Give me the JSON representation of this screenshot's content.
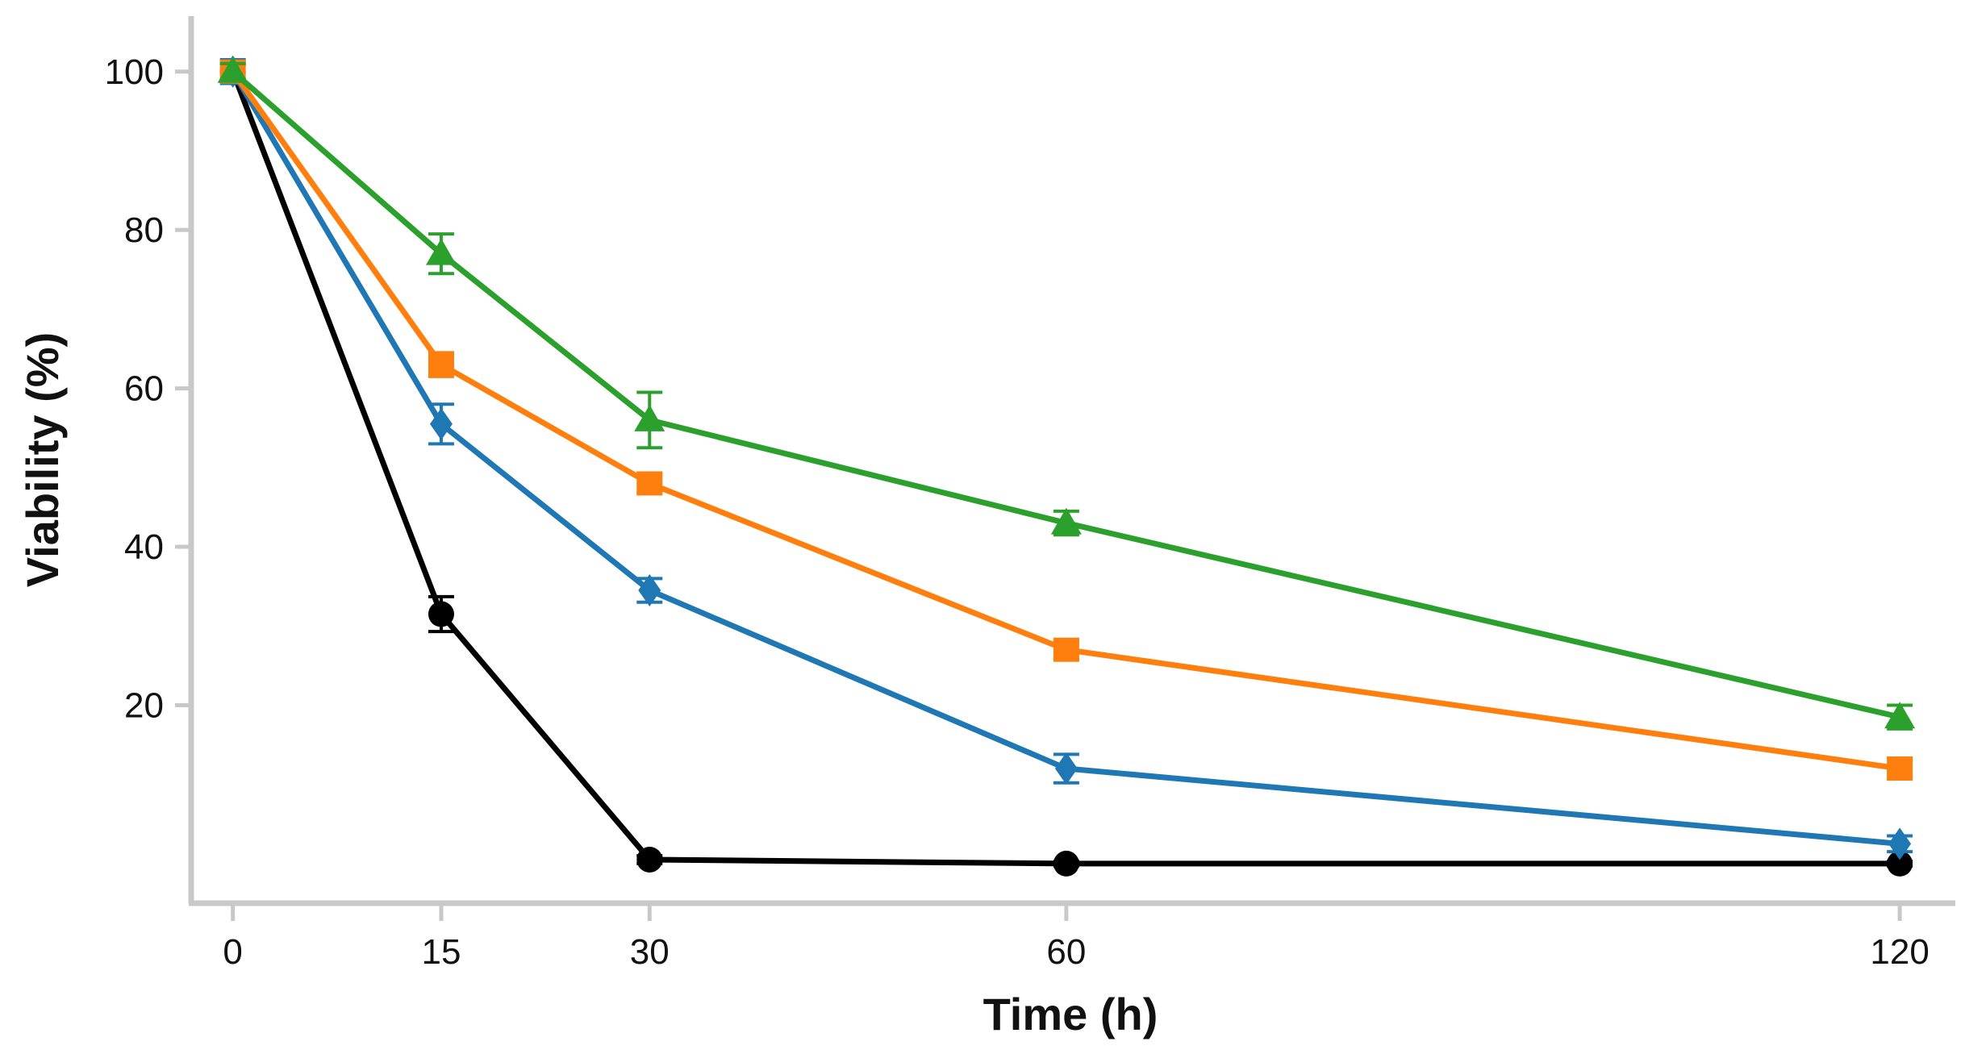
{
  "chart_data": {
    "type": "line",
    "title": "",
    "xlabel": "Time (h)",
    "ylabel": "Viability (%)",
    "x": [
      0,
      15,
      30,
      60,
      120
    ],
    "x_tick_labels": [
      "0",
      "15",
      "30",
      "60",
      "120"
    ],
    "y_ticks": [
      20,
      40,
      60,
      80,
      100
    ],
    "y_tick_labels": [
      "20",
      "40",
      "60",
      "80",
      "100"
    ],
    "xlim": [
      -3,
      124
    ],
    "ylim": [
      -5,
      107
    ],
    "grid": false,
    "legend": "none",
    "series": [
      {
        "name": "black",
        "color": "#000000",
        "marker": "circle",
        "values": [
          100,
          31.5,
          0.5,
          0,
          0
        ],
        "errors": [
          1.0,
          2.2,
          0.5,
          0.3,
          0.3
        ]
      },
      {
        "name": "blue",
        "color": "#1f77b4",
        "marker": "diamond",
        "values": [
          100,
          55.5,
          34.5,
          12,
          2.5
        ],
        "errors": [
          1.5,
          2.5,
          1.5,
          1.8,
          1.0
        ]
      },
      {
        "name": "orange",
        "color": "#ff7f0e",
        "marker": "square",
        "values": [
          100,
          63,
          48,
          27,
          12
        ],
        "errors": [
          1.0,
          1.5,
          1.2,
          1.2,
          1.3
        ]
      },
      {
        "name": "green",
        "color": "#2ca02c",
        "marker": "triangle",
        "values": [
          100,
          77,
          56,
          43,
          18.5
        ],
        "errors": [
          1.0,
          2.5,
          3.5,
          1.5,
          1.5
        ]
      }
    ]
  }
}
